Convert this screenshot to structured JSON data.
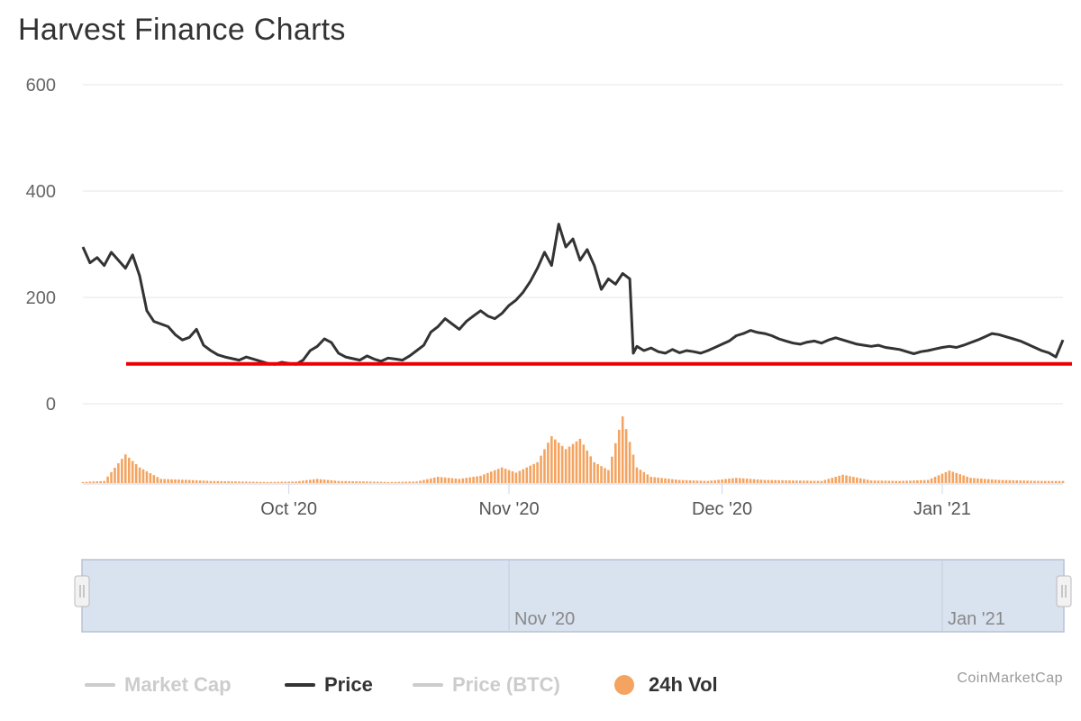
{
  "title": "Harvest Finance Charts",
  "credit": "CoinMarketCap",
  "colors": {
    "price": "#333333",
    "volume": "#f4a460",
    "threshold": "#ee0000",
    "grid": "#e6e6e6",
    "navigator_fill": "#d9e2ef",
    "navigator_border": "#b7c2d6",
    "legend_hidden": "#cccccc"
  },
  "legend": [
    {
      "label": "Market Cap",
      "color": "#cccccc",
      "marker": "line",
      "hidden": true
    },
    {
      "label": "Price",
      "color": "#333333",
      "marker": "line",
      "hidden": false
    },
    {
      "label": "Price (BTC)",
      "color": "#cccccc",
      "marker": "line",
      "hidden": true
    },
    {
      "label": "24h Vol",
      "color": "#f4a460",
      "marker": "dot",
      "hidden": false
    }
  ],
  "chart_data": {
    "type": "line",
    "title": "Harvest Finance Charts",
    "x_range": [
      "2020-09-02",
      "2021-01-18"
    ],
    "ylim": [
      0,
      600
    ],
    "y_ticks": [
      "0",
      "200",
      "400",
      "600"
    ],
    "x_ticks": [
      {
        "label": "Oct '20",
        "date": "2020-10-01"
      },
      {
        "label": "Nov '20",
        "date": "2020-11-01"
      },
      {
        "label": "Dec '20",
        "date": "2020-12-01"
      },
      {
        "label": "Jan '21",
        "date": "2021-01-01"
      }
    ],
    "grid": true,
    "legend_position": "bottom",
    "series": [
      {
        "name": "Price",
        "points": [
          [
            "2020-09-02",
            295
          ],
          [
            "2020-09-03",
            265
          ],
          [
            "2020-09-04",
            275
          ],
          [
            "2020-09-05",
            260
          ],
          [
            "2020-09-06",
            285
          ],
          [
            "2020-09-07",
            270
          ],
          [
            "2020-09-08",
            255
          ],
          [
            "2020-09-09",
            280
          ],
          [
            "2020-09-10",
            240
          ],
          [
            "2020-09-11",
            175
          ],
          [
            "2020-09-12",
            155
          ],
          [
            "2020-09-13",
            150
          ],
          [
            "2020-09-14",
            145
          ],
          [
            "2020-09-15",
            130
          ],
          [
            "2020-09-16",
            120
          ],
          [
            "2020-09-17",
            125
          ],
          [
            "2020-09-18",
            140
          ],
          [
            "2020-09-19",
            110
          ],
          [
            "2020-09-20",
            100
          ],
          [
            "2020-09-21",
            92
          ],
          [
            "2020-09-22",
            88
          ],
          [
            "2020-09-23",
            85
          ],
          [
            "2020-09-24",
            82
          ],
          [
            "2020-09-25",
            88
          ],
          [
            "2020-09-26",
            84
          ],
          [
            "2020-09-27",
            80
          ],
          [
            "2020-09-28",
            76
          ],
          [
            "2020-09-29",
            74
          ],
          [
            "2020-09-30",
            78
          ],
          [
            "2020-10-01",
            76
          ],
          [
            "2020-10-02",
            74
          ],
          [
            "2020-10-03",
            82
          ],
          [
            "2020-10-04",
            100
          ],
          [
            "2020-10-05",
            108
          ],
          [
            "2020-10-06",
            122
          ],
          [
            "2020-10-07",
            115
          ],
          [
            "2020-10-08",
            95
          ],
          [
            "2020-10-09",
            88
          ],
          [
            "2020-10-10",
            85
          ],
          [
            "2020-10-11",
            82
          ],
          [
            "2020-10-12",
            90
          ],
          [
            "2020-10-13",
            84
          ],
          [
            "2020-10-14",
            80
          ],
          [
            "2020-10-15",
            86
          ],
          [
            "2020-10-16",
            84
          ],
          [
            "2020-10-17",
            82
          ],
          [
            "2020-10-18",
            90
          ],
          [
            "2020-10-19",
            100
          ],
          [
            "2020-10-20",
            110
          ],
          [
            "2020-10-21",
            135
          ],
          [
            "2020-10-22",
            145
          ],
          [
            "2020-10-23",
            160
          ],
          [
            "2020-10-24",
            150
          ],
          [
            "2020-10-25",
            140
          ],
          [
            "2020-10-26",
            155
          ],
          [
            "2020-10-27",
            165
          ],
          [
            "2020-10-28",
            175
          ],
          [
            "2020-10-29",
            165
          ],
          [
            "2020-10-30",
            160
          ],
          [
            "2020-10-31",
            170
          ],
          [
            "2020-11-01",
            185
          ],
          [
            "2020-11-02",
            195
          ],
          [
            "2020-11-03",
            210
          ],
          [
            "2020-11-04",
            230
          ],
          [
            "2020-11-05",
            255
          ],
          [
            "2020-11-06",
            285
          ],
          [
            "2020-11-07",
            260
          ],
          [
            "2020-11-08",
            338
          ],
          [
            "2020-11-09",
            295
          ],
          [
            "2020-11-10",
            310
          ],
          [
            "2020-11-11",
            270
          ],
          [
            "2020-11-12",
            290
          ],
          [
            "2020-11-13",
            260
          ],
          [
            "2020-11-14",
            215
          ],
          [
            "2020-11-15",
            235
          ],
          [
            "2020-11-16",
            225
          ],
          [
            "2020-11-17",
            245
          ],
          [
            "2020-11-18",
            235
          ],
          [
            "2020-11-18T12",
            95
          ],
          [
            "2020-11-19",
            108
          ],
          [
            "2020-11-20",
            100
          ],
          [
            "2020-11-21",
            105
          ],
          [
            "2020-11-22",
            98
          ],
          [
            "2020-11-23",
            95
          ],
          [
            "2020-11-24",
            102
          ],
          [
            "2020-11-25",
            96
          ],
          [
            "2020-11-26",
            100
          ],
          [
            "2020-11-27",
            98
          ],
          [
            "2020-11-28",
            95
          ],
          [
            "2020-11-29",
            100
          ],
          [
            "2020-11-30",
            106
          ],
          [
            "2020-12-01",
            112
          ],
          [
            "2020-12-02",
            118
          ],
          [
            "2020-12-03",
            128
          ],
          [
            "2020-12-04",
            132
          ],
          [
            "2020-12-05",
            138
          ],
          [
            "2020-12-06",
            134
          ],
          [
            "2020-12-07",
            132
          ],
          [
            "2020-12-08",
            128
          ],
          [
            "2020-12-09",
            122
          ],
          [
            "2020-12-10",
            118
          ],
          [
            "2020-12-11",
            114
          ],
          [
            "2020-12-12",
            112
          ],
          [
            "2020-12-13",
            116
          ],
          [
            "2020-12-14",
            118
          ],
          [
            "2020-12-15",
            114
          ],
          [
            "2020-12-16",
            120
          ],
          [
            "2020-12-17",
            124
          ],
          [
            "2020-12-18",
            120
          ],
          [
            "2020-12-19",
            116
          ],
          [
            "2020-12-20",
            112
          ],
          [
            "2020-12-21",
            110
          ],
          [
            "2020-12-22",
            108
          ],
          [
            "2020-12-23",
            110
          ],
          [
            "2020-12-24",
            106
          ],
          [
            "2020-12-25",
            104
          ],
          [
            "2020-12-26",
            102
          ],
          [
            "2020-12-27",
            98
          ],
          [
            "2020-12-28",
            94
          ],
          [
            "2020-12-29",
            98
          ],
          [
            "2020-12-30",
            100
          ],
          [
            "2020-12-31",
            103
          ],
          [
            "2021-01-01",
            106
          ],
          [
            "2021-01-02",
            108
          ],
          [
            "2021-01-03",
            106
          ],
          [
            "2021-01-04",
            110
          ],
          [
            "2021-01-05",
            115
          ],
          [
            "2021-01-06",
            120
          ],
          [
            "2021-01-07",
            126
          ],
          [
            "2021-01-08",
            132
          ],
          [
            "2021-01-09",
            130
          ],
          [
            "2021-01-10",
            126
          ],
          [
            "2021-01-11",
            122
          ],
          [
            "2021-01-12",
            118
          ],
          [
            "2021-01-13",
            112
          ],
          [
            "2021-01-14",
            106
          ],
          [
            "2021-01-15",
            100
          ],
          [
            "2021-01-16",
            96
          ],
          [
            "2021-01-17",
            88
          ],
          [
            "2021-01-18",
            120
          ]
        ]
      },
      {
        "name": "24h Vol",
        "points": [
          [
            "2020-09-02",
            2
          ],
          [
            "2020-09-05",
            4
          ],
          [
            "2020-09-08",
            55
          ],
          [
            "2020-09-10",
            30
          ],
          [
            "2020-09-13",
            8
          ],
          [
            "2020-09-17",
            6
          ],
          [
            "2020-09-20",
            4
          ],
          [
            "2020-09-24",
            3
          ],
          [
            "2020-09-28",
            2
          ],
          [
            "2020-10-02",
            3
          ],
          [
            "2020-10-05",
            8
          ],
          [
            "2020-10-08",
            4
          ],
          [
            "2020-10-12",
            3
          ],
          [
            "2020-10-15",
            2
          ],
          [
            "2020-10-19",
            3
          ],
          [
            "2020-10-22",
            12
          ],
          [
            "2020-10-25",
            8
          ],
          [
            "2020-10-28",
            14
          ],
          [
            "2020-10-31",
            30
          ],
          [
            "2020-11-02",
            20
          ],
          [
            "2020-11-05",
            40
          ],
          [
            "2020-11-07",
            90
          ],
          [
            "2020-11-09",
            65
          ],
          [
            "2020-11-11",
            85
          ],
          [
            "2020-11-13",
            40
          ],
          [
            "2020-11-15",
            25
          ],
          [
            "2020-11-17",
            128
          ],
          [
            "2020-11-19",
            30
          ],
          [
            "2020-11-21",
            12
          ],
          [
            "2020-11-25",
            6
          ],
          [
            "2020-11-29",
            4
          ],
          [
            "2020-12-03",
            10
          ],
          [
            "2020-12-07",
            6
          ],
          [
            "2020-12-11",
            5
          ],
          [
            "2020-12-15",
            4
          ],
          [
            "2020-12-18",
            16
          ],
          [
            "2020-12-22",
            5
          ],
          [
            "2020-12-26",
            4
          ],
          [
            "2020-12-30",
            6
          ],
          [
            "2021-01-02",
            24
          ],
          [
            "2021-01-05",
            10
          ],
          [
            "2021-01-09",
            6
          ],
          [
            "2021-01-12",
            5
          ],
          [
            "2021-01-15",
            4
          ],
          [
            "2021-01-18",
            4
          ]
        ]
      }
    ],
    "reference_line": {
      "y": 75,
      "color": "#ee0000"
    },
    "navigator": {
      "labels": [
        {
          "label": "Nov '20",
          "date": "2020-11-01"
        },
        {
          "label": "Jan '21",
          "date": "2021-01-01"
        }
      ]
    }
  }
}
